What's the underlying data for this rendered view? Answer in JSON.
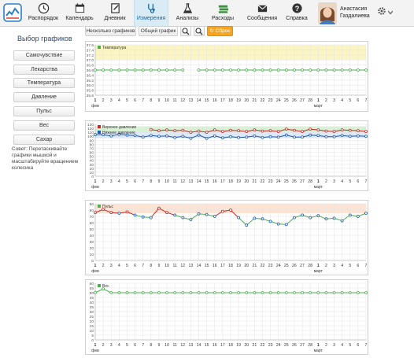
{
  "nav": {
    "items": [
      {
        "label": "Распорядок",
        "icon": "clock-icon",
        "active": false
      },
      {
        "label": "Календарь",
        "icon": "calendar-icon",
        "active": false
      },
      {
        "label": "Дневник",
        "icon": "diary-icon",
        "active": false
      },
      {
        "label": "Измерения",
        "icon": "stethoscope-icon",
        "active": true
      },
      {
        "label": "Анализы",
        "icon": "flask-icon",
        "active": false
      },
      {
        "label": "Расходы",
        "icon": "money-icon",
        "active": false
      },
      {
        "label": "Сообщения",
        "icon": "envelope-icon",
        "active": false
      },
      {
        "label": "Справка",
        "icon": "help-icon",
        "active": false
      }
    ],
    "user": {
      "first": "Анастасия",
      "last": "Газдалиева"
    }
  },
  "sidebar": {
    "title": "Выбор графиков",
    "buttons": [
      "Самочувствие",
      "Лекарства",
      "Температура",
      "Давление",
      "Пульс",
      "Вес",
      "Сахар"
    ],
    "hint": "Совет: Перетаскивайте графики мышкой и масштабируйте вращением колесика"
  },
  "toolbar": {
    "several_label": "Несколько графиков",
    "common_label": "Общий график",
    "reset_label": "Сброс",
    "zoom_in_icon": "magnifier-icon",
    "zoom_out_icon": "magnifier-icon"
  },
  "x_axis": {
    "ticks": [
      "1",
      "2",
      "3",
      "4",
      "5",
      "6",
      "7",
      "8",
      "9",
      "10",
      "11",
      "12",
      "13",
      "14",
      "15",
      "16",
      "17",
      "18",
      "19",
      "20",
      "21",
      "22",
      "23",
      "24",
      "25",
      "26",
      "27",
      "28",
      "1",
      "2",
      "3",
      "4",
      "5",
      "6",
      "7"
    ],
    "month_feb": "фев",
    "month_mar": "март"
  },
  "chart_data": [
    {
      "type": "line",
      "legend": "Температура",
      "yticks": [
        "35.6",
        "35.8",
        "36.0",
        "36.2",
        "36.4",
        "36.6",
        "36.8",
        "37.0",
        "37.2",
        "37.4",
        "37.6"
      ],
      "ylim": [
        35.6,
        37.6
      ],
      "series": [
        {
          "name": "Температура",
          "color": "#4caf50",
          "values": [
            36.6,
            36.6,
            36.6,
            36.6,
            36.6,
            36.6,
            36.6,
            36.6,
            36.6,
            36.6,
            36.6,
            36.6,
            null,
            36.6,
            36.6,
            36.6,
            36.6,
            36.6,
            36.6,
            36.6,
            36.6,
            36.6,
            36.6,
            36.6,
            36.6,
            36.6,
            36.6,
            36.6,
            36.6,
            36.6,
            36.6,
            36.6,
            36.6,
            36.6,
            36.6
          ]
        }
      ],
      "bands": [
        {
          "from": 37.0,
          "to": 37.6,
          "color": "#fbf5c4"
        }
      ]
    },
    {
      "type": "line",
      "legend": [
        "Верхнее давление",
        "Нижнее давление"
      ],
      "yticks": [
        "0",
        "10",
        "20",
        "30",
        "40",
        "50",
        "60",
        "70",
        "80",
        "90",
        "100",
        "110",
        "120",
        "130"
      ],
      "ylim": [
        0,
        130
      ],
      "series": [
        {
          "name": "Верхнее давление",
          "color": "#c62828",
          "values": [
            null,
            null,
            null,
            null,
            null,
            null,
            null,
            117,
            114,
            116,
            114,
            115,
            110,
            113,
            110,
            116,
            112,
            115,
            114,
            112,
            116,
            113,
            114,
            112,
            118,
            115,
            112,
            118,
            116,
            113,
            112,
            116,
            115,
            114,
            112
          ]
        },
        {
          "name": "Нижнее давление",
          "color": "#1e5aa8",
          "values": [
            104,
            104,
            101,
            105,
            103,
            102,
            98,
            102,
            100,
            101,
            97,
            100,
            95,
            103,
            95,
            101,
            96,
            99,
            97,
            98,
            101,
            97,
            99,
            98,
            103,
            98,
            98,
            103,
            102,
            99,
            99,
            102,
            100,
            101,
            100
          ]
        }
      ],
      "bands": [
        {
          "from": 110,
          "to": 125,
          "color": "#d6f2d2"
        },
        {
          "from": 95,
          "to": 110,
          "color": "#dce8fb"
        }
      ]
    },
    {
      "type": "line",
      "legend": "Пульс",
      "yticks": [
        "0",
        "10",
        "20",
        "30",
        "40",
        "50",
        "60",
        "70",
        "80",
        "90"
      ],
      "ylim": [
        0,
        90
      ],
      "series": [
        {
          "name": "Пульс",
          "color": "#4caf50",
          "values": [
            76,
            81,
            76,
            75,
            77,
            72,
            69,
            68,
            83,
            76,
            72,
            68,
            65,
            74,
            73,
            70,
            78,
            80,
            68,
            56,
            67,
            66,
            62,
            58,
            57,
            68,
            72,
            68,
            71,
            66,
            67,
            63,
            72,
            70,
            75
          ]
        }
      ],
      "bands": [
        {
          "from": 75,
          "to": 90,
          "color": "#fde3d3"
        }
      ],
      "red_above": 75
    },
    {
      "type": "line",
      "legend": "Вес",
      "yticks": [
        "0",
        "5",
        "10",
        "15",
        "20",
        "25",
        "30",
        "35",
        "40",
        "45",
        "50",
        "55",
        "60"
      ],
      "ylim": [
        0,
        60
      ],
      "series": [
        {
          "name": "Вес",
          "color": "#4caf50",
          "values": [
            50,
            54,
            50,
            50,
            50,
            50,
            50,
            50,
            50,
            50,
            50,
            50,
            50,
            50,
            50,
            50,
            50,
            50,
            50,
            50,
            50,
            50,
            50,
            50,
            50,
            50,
            50,
            50,
            50,
            50,
            50,
            50,
            50,
            50,
            50
          ]
        }
      ],
      "bands": []
    }
  ]
}
